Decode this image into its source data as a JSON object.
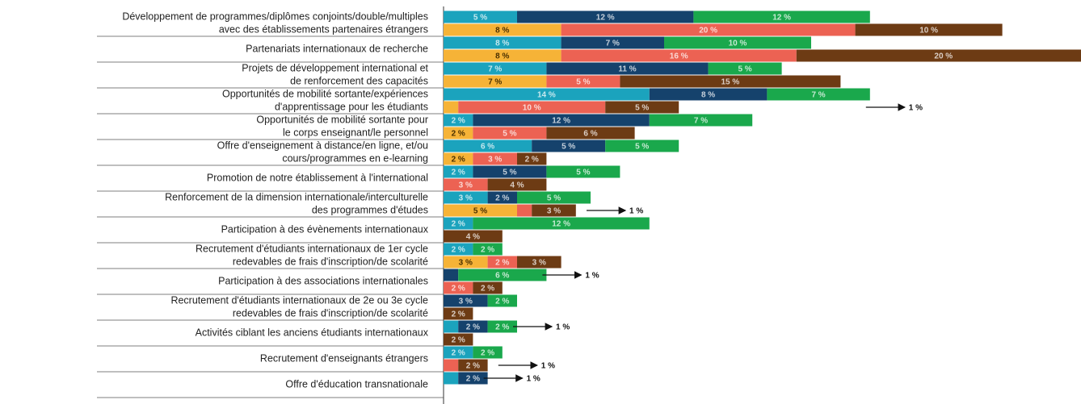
{
  "chart_data": {
    "type": "bar",
    "categories": [
      [
        "Développement de programmes/diplômes conjoints/double/multiples",
        "avec des établissements partenaires étrangers"
      ],
      [
        "Partenariats internationaux de recherche"
      ],
      [
        "Projets de développement international et",
        "de renforcement des capacités"
      ],
      [
        "Opportunités de mobilité sortante/expériences",
        "d'apprentissage pour les étudiants"
      ],
      [
        "Opportunités de mobilité sortante pour",
        "le corps enseignant/le personnel"
      ],
      [
        "Offre d'enseignement à distance/en ligne, et/ou",
        "cours/programmes en e-learning"
      ],
      [
        "Promotion de notre établissement à l'international"
      ],
      [
        "Renforcement de la dimension internationale/interculturelle",
        "des programmes d'études"
      ],
      [
        "Participation à des évènements internationaux"
      ],
      [
        "Recrutement d'étudiants internationaux de 1er cycle",
        "redevables de frais d'inscription/de scolarité"
      ],
      [
        "Participation à des associations internationales"
      ],
      [
        "Recrutement d'étudiants internationaux de 2e ou 3e cycle",
        "redevables de frais d'inscription/de scolarité"
      ],
      [
        "Activités ciblant les anciens étudiants internationaux"
      ],
      [
        "Recrutement d'enseignants étrangers"
      ],
      [
        "Offre d'éducation transnationale"
      ]
    ],
    "series": [
      {
        "color": "#1ba3bd",
        "values": [
          5,
          8,
          7,
          14,
          2,
          6,
          2,
          3,
          2,
          2,
          null,
          null,
          1,
          2,
          1
        ],
        "value_labels": [
          "5 %",
          "8 %",
          "7 %",
          "14 %",
          "2 %",
          "6 %",
          "2 %",
          "3 %",
          "2 %",
          "2 %",
          null,
          null,
          "1 %",
          "2 %",
          "1 %"
        ]
      },
      {
        "color": "#15426c",
        "values": [
          12,
          7,
          11,
          8,
          12,
          5,
          5,
          2,
          null,
          null,
          1,
          3,
          2,
          null,
          2
        ],
        "value_labels": [
          "12 %",
          "7 %",
          "11 %",
          "8 %",
          "12 %",
          "5 %",
          "5 %",
          "2 %",
          null,
          null,
          "1 %",
          "3 %",
          "2 %",
          null,
          "2 %"
        ]
      },
      {
        "color": "#1aa84c",
        "values": [
          12,
          10,
          5,
          7,
          7,
          5,
          5,
          5,
          12,
          2,
          6,
          2,
          2,
          2,
          null
        ],
        "value_labels": [
          "12 %",
          "10 %",
          "5 %",
          "7 %",
          "7 %",
          "5 %",
          "5 %",
          "5 %",
          "12 %",
          "2 %",
          "6 %",
          "2 %",
          "2 %",
          "2 %",
          null
        ]
      },
      {
        "color": "#f6b337",
        "values": [
          8,
          8,
          7,
          1,
          2,
          2,
          null,
          5,
          null,
          3,
          null,
          null,
          null,
          null,
          null
        ],
        "value_labels": [
          "8 %",
          "8 %",
          "7 %",
          "1 %",
          "2 %",
          "2 %",
          null,
          "5 %",
          null,
          "3 %",
          null,
          null,
          null,
          null,
          null
        ]
      },
      {
        "color": "#ec6253",
        "values": [
          20,
          16,
          5,
          10,
          5,
          3,
          3,
          1,
          null,
          2,
          2,
          null,
          null,
          1,
          null
        ],
        "value_labels": [
          "20 %",
          "16 %",
          "5 %",
          "10 %",
          "5 %",
          "3 %",
          "3 %",
          "1 %",
          null,
          "2 %",
          "2 %",
          null,
          null,
          "1 %",
          null
        ]
      },
      {
        "color": "#6d3b14",
        "values": [
          10,
          20,
          15,
          5,
          6,
          2,
          4,
          3,
          4,
          3,
          2,
          2,
          2,
          2,
          null
        ],
        "value_labels": [
          "10 %",
          "20 %",
          "15 %",
          "5 %",
          "6 %",
          "2 %",
          "4 %",
          "3 %",
          "4 %",
          "3 %",
          "2 %",
          "2 %",
          "2 %",
          "2 %",
          null
        ]
      }
    ]
  }
}
